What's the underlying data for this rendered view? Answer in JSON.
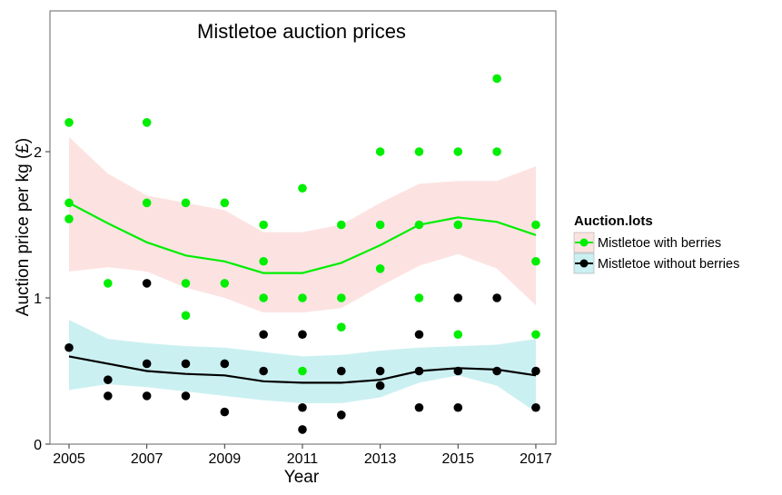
{
  "chart_data": {
    "type": "scatter",
    "title": "Mistletoe auction prices",
    "xlabel": "Year",
    "ylabel": "Auction price per kg (£)",
    "xlim": [
      2004.5,
      2017.6
    ],
    "ylim": [
      0,
      2.8
    ],
    "xticks": [
      2005,
      2007,
      2009,
      2011,
      2013,
      2015,
      2017
    ],
    "yticks": [
      0,
      1,
      2
    ],
    "grid": false,
    "legend": {
      "title": "Auction.lots",
      "placement": "right"
    },
    "series": [
      {
        "name": "Mistletoe with berries",
        "color": "#00ee00",
        "band_color": "#fce3e2",
        "points": [
          [
            2005,
            2.2
          ],
          [
            2005,
            1.65
          ],
          [
            2005,
            1.54
          ],
          [
            2006,
            1.1
          ],
          [
            2007,
            2.2
          ],
          [
            2007,
            1.65
          ],
          [
            2008,
            1.65
          ],
          [
            2008,
            1.1
          ],
          [
            2008,
            0.88
          ],
          [
            2009,
            1.65
          ],
          [
            2009,
            1.1
          ],
          [
            2010,
            1.5
          ],
          [
            2010,
            1.25
          ],
          [
            2010,
            1.0
          ],
          [
            2011,
            1.75
          ],
          [
            2011,
            1.0
          ],
          [
            2011,
            0.5
          ],
          [
            2012,
            1.5
          ],
          [
            2012,
            1.0
          ],
          [
            2012,
            0.8
          ],
          [
            2013,
            2.0
          ],
          [
            2013,
            1.5
          ],
          [
            2013,
            1.2
          ],
          [
            2014,
            2.0
          ],
          [
            2014,
            1.5
          ],
          [
            2014,
            1.0
          ],
          [
            2015,
            2.0
          ],
          [
            2015,
            1.5
          ],
          [
            2015,
            0.75
          ],
          [
            2016,
            2.5
          ],
          [
            2016,
            2.0
          ],
          [
            2017,
            1.5
          ],
          [
            2017,
            1.25
          ],
          [
            2017,
            0.75
          ]
        ],
        "smooth": {
          "x": [
            2005,
            2006,
            2007,
            2008,
            2009,
            2010,
            2011,
            2012,
            2013,
            2014,
            2015,
            2016,
            2017
          ],
          "fit": [
            1.65,
            1.51,
            1.38,
            1.29,
            1.25,
            1.17,
            1.17,
            1.24,
            1.36,
            1.5,
            1.55,
            1.52,
            1.43
          ],
          "upper": [
            2.1,
            1.85,
            1.7,
            1.65,
            1.6,
            1.45,
            1.45,
            1.5,
            1.65,
            1.78,
            1.8,
            1.8,
            1.9
          ],
          "lower": [
            1.18,
            1.21,
            1.18,
            1.07,
            1.0,
            0.9,
            0.9,
            0.93,
            1.08,
            1.22,
            1.3,
            1.2,
            0.95
          ]
        }
      },
      {
        "name": "Mistletoe without berries",
        "color": "#000000",
        "band_color": "#cbf0f1",
        "points": [
          [
            2005,
            0.66
          ],
          [
            2006,
            0.44
          ],
          [
            2006,
            0.33
          ],
          [
            2007,
            1.1
          ],
          [
            2007,
            0.55
          ],
          [
            2007,
            0.33
          ],
          [
            2008,
            0.55
          ],
          [
            2008,
            0.33
          ],
          [
            2009,
            0.55
          ],
          [
            2009,
            0.22
          ],
          [
            2010,
            0.75
          ],
          [
            2010,
            0.5
          ],
          [
            2011,
            0.75
          ],
          [
            2011,
            0.25
          ],
          [
            2011,
            0.1
          ],
          [
            2012,
            0.5
          ],
          [
            2012,
            0.2
          ],
          [
            2013,
            0.5
          ],
          [
            2013,
            0.4
          ],
          [
            2014,
            0.75
          ],
          [
            2014,
            0.5
          ],
          [
            2014,
            0.25
          ],
          [
            2015,
            1.0
          ],
          [
            2015,
            0.5
          ],
          [
            2015,
            0.25
          ],
          [
            2016,
            1.0
          ],
          [
            2016,
            0.5
          ],
          [
            2017,
            0.5
          ],
          [
            2017,
            0.25
          ]
        ],
        "smooth": {
          "x": [
            2005,
            2006,
            2007,
            2008,
            2009,
            2010,
            2011,
            2012,
            2013,
            2014,
            2015,
            2016,
            2017
          ],
          "fit": [
            0.6,
            0.55,
            0.5,
            0.48,
            0.47,
            0.43,
            0.42,
            0.42,
            0.44,
            0.5,
            0.52,
            0.51,
            0.47
          ],
          "upper": [
            0.85,
            0.72,
            0.69,
            0.67,
            0.66,
            0.63,
            0.6,
            0.61,
            0.64,
            0.66,
            0.67,
            0.68,
            0.72
          ],
          "lower": [
            0.37,
            0.41,
            0.39,
            0.36,
            0.33,
            0.3,
            0.28,
            0.28,
            0.32,
            0.42,
            0.47,
            0.4,
            0.22
          ]
        }
      }
    ]
  }
}
